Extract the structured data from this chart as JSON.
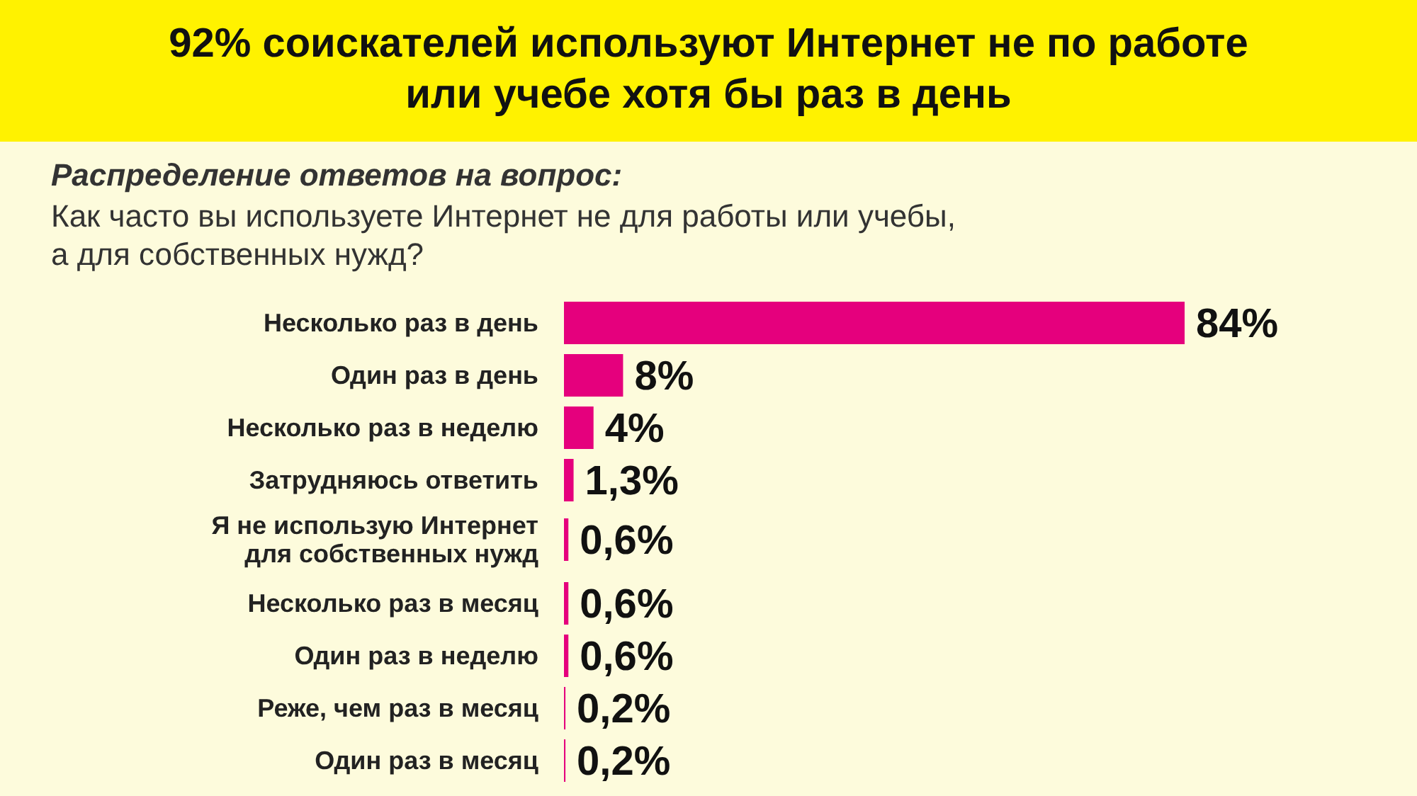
{
  "chart_data": {
    "type": "bar",
    "orientation": "horizontal",
    "title": "92% соискателей используют Интернет не по работе\nили учебе хотя бы раз в день",
    "subtitle": "Распределение ответов на вопрос:",
    "annotations": [
      "Как  часто вы используете Интернет не для работы или учебы,\nа для собственных нужд?"
    ],
    "categories": [
      "Несколько раз в день",
      "Один раз в день",
      "Несколько раз в неделю",
      "Затрудняюсь ответить",
      "Я не использую Интернет\nдля собственных нужд",
      "Несколько раз в месяц",
      "Один раз в неделю",
      "Реже, чем раз в месяц",
      "Один раз в месяц"
    ],
    "values": [
      84,
      8,
      4,
      1.3,
      0.6,
      0.6,
      0.6,
      0.2,
      0.2
    ],
    "value_labels": [
      "84%",
      "8%",
      "4%",
      "1,3%",
      "0,6%",
      "0,6%",
      "0,6%",
      "0,2%",
      "0,2%"
    ],
    "color": "#e5007d"
  }
}
